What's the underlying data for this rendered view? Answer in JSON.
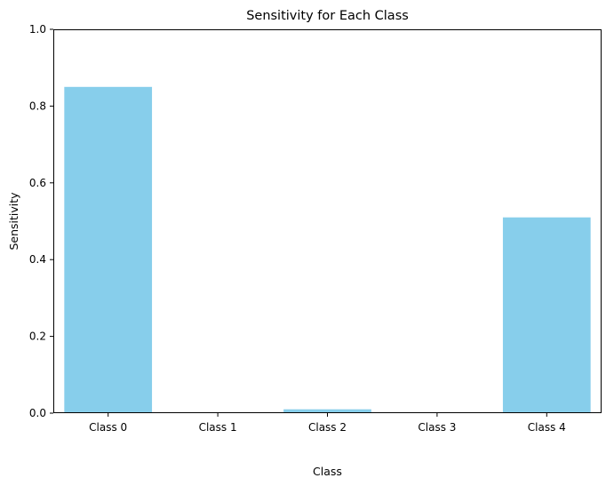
{
  "chart_data": {
    "type": "bar",
    "title": "Sensitivity for Each Class",
    "xlabel": "Class",
    "ylabel": "Sensitivity",
    "categories": [
      "Class 0",
      "Class 1",
      "Class 2",
      "Class 3",
      "Class 4"
    ],
    "values": [
      0.85,
      0.0,
      0.01,
      0.0,
      0.51
    ],
    "ylim": [
      0,
      1.0
    ],
    "yticks": [
      "0.0",
      "0.2",
      "0.4",
      "0.6",
      "0.8",
      "1.0"
    ],
    "bar_color": "#87ceeb",
    "grid": false,
    "legend": false
  }
}
